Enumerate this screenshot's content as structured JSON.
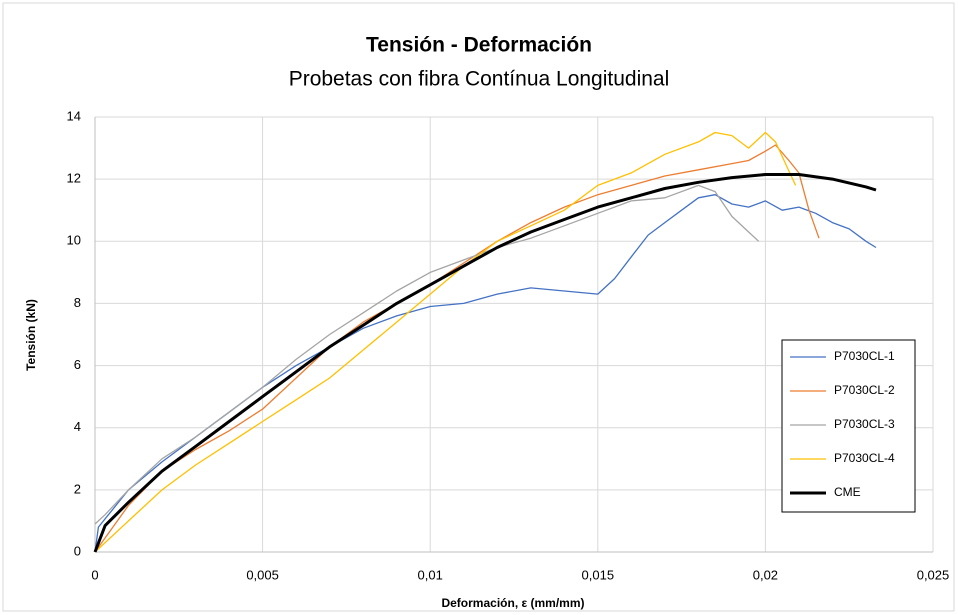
{
  "chart_data": {
    "type": "line",
    "title": "Tensión - Deformación",
    "subtitle": "Probetas con fibra Contínua Longitudinal",
    "x_label": "Deformación, ε (mm/mm)",
    "y_label": "Tensión (kN)",
    "xlim": [
      0,
      0.025
    ],
    "xticks": [
      0,
      {
        "value": 0.005,
        "label": "0,005"
      },
      {
        "value": 0.01,
        "label": "0,01"
      },
      {
        "value": 0.015,
        "label": "0,015"
      },
      {
        "value": 0.02,
        "label": "0,02"
      },
      {
        "value": 0.025,
        "label": "0,025"
      }
    ],
    "ylim": [
      0,
      14
    ],
    "yticks": [
      0,
      2,
      4,
      6,
      8,
      10,
      12,
      14
    ],
    "grid": true,
    "legend": "right",
    "series": [
      {
        "name": "P7030CL-1",
        "color": "#4472c4",
        "width": 1.3,
        "x": [
          0,
          0.0001,
          0.001,
          0.002,
          0.003,
          0.004,
          0.005,
          0.006,
          0.007,
          0.008,
          0.009,
          0.01,
          0.011,
          0.012,
          0.013,
          0.014,
          0.015,
          0.0155,
          0.016,
          0.0165,
          0.017,
          0.0175,
          0.018,
          0.0185,
          0.019,
          0.0195,
          0.02,
          0.0205,
          0.021,
          0.0215,
          0.022,
          0.0225,
          0.023,
          0.0233
        ],
        "values": [
          0,
          0.8,
          2,
          2.9,
          3.7,
          4.5,
          5.3,
          6.0,
          6.6,
          7.2,
          7.6,
          7.9,
          8.0,
          8.3,
          8.5,
          8.4,
          8.3,
          8.8,
          9.5,
          10.2,
          10.6,
          11.0,
          11.4,
          11.5,
          11.2,
          11.1,
          11.3,
          11.0,
          11.1,
          10.9,
          10.6,
          10.4,
          10.0,
          9.8
        ]
      },
      {
        "name": "P7030CL-2",
        "color": "#ed7d31",
        "width": 1.3,
        "x": [
          0,
          0.001,
          0.002,
          0.003,
          0.004,
          0.005,
          0.006,
          0.007,
          0.008,
          0.009,
          0.01,
          0.011,
          0.012,
          0.013,
          0.014,
          0.015,
          0.016,
          0.017,
          0.018,
          0.019,
          0.0195,
          0.02,
          0.0203,
          0.0207,
          0.021,
          0.0213,
          0.0216
        ],
        "values": [
          0,
          1.5,
          2.6,
          3.3,
          3.9,
          4.6,
          5.6,
          6.6,
          7.4,
          8.0,
          8.6,
          9.3,
          10.0,
          10.6,
          11.1,
          11.5,
          11.8,
          12.1,
          12.3,
          12.5,
          12.6,
          12.9,
          13.1,
          12.6,
          12.2,
          11.0,
          10.1
        ]
      },
      {
        "name": "P7030CL-3",
        "color": "#a5a5a5",
        "width": 1.3,
        "x": [
          0,
          0.0003,
          0.001,
          0.002,
          0.003,
          0.004,
          0.005,
          0.006,
          0.007,
          0.008,
          0.009,
          0.01,
          0.011,
          0.012,
          0.013,
          0.014,
          0.015,
          0.016,
          0.017,
          0.018,
          0.0185,
          0.019,
          0.0195,
          0.0198
        ],
        "values": [
          0.9,
          1.2,
          2.0,
          3.0,
          3.7,
          4.5,
          5.3,
          6.2,
          7.0,
          7.7,
          8.4,
          9.0,
          9.4,
          9.8,
          10.1,
          10.5,
          10.9,
          11.3,
          11.4,
          11.8,
          11.6,
          10.8,
          10.3,
          10.0
        ]
      },
      {
        "name": "P7030CL-4",
        "color": "#ffc000",
        "width": 1.3,
        "x": [
          0,
          0.001,
          0.002,
          0.003,
          0.004,
          0.005,
          0.006,
          0.007,
          0.008,
          0.009,
          0.01,
          0.011,
          0.012,
          0.013,
          0.014,
          0.015,
          0.016,
          0.017,
          0.018,
          0.0185,
          0.019,
          0.0195,
          0.02,
          0.0203,
          0.0206,
          0.0209
        ],
        "values": [
          0,
          1.0,
          2.0,
          2.8,
          3.5,
          4.2,
          4.9,
          5.6,
          6.5,
          7.4,
          8.3,
          9.2,
          10.0,
          10.5,
          11.0,
          11.8,
          12.2,
          12.8,
          13.2,
          13.5,
          13.4,
          13.0,
          13.5,
          13.2,
          12.5,
          11.8
        ]
      },
      {
        "name": "CME",
        "color": "#000000",
        "width": 3,
        "x": [
          0,
          0.0003,
          0.001,
          0.002,
          0.003,
          0.004,
          0.005,
          0.006,
          0.007,
          0.008,
          0.009,
          0.01,
          0.011,
          0.012,
          0.013,
          0.014,
          0.015,
          0.016,
          0.017,
          0.018,
          0.019,
          0.02,
          0.021,
          0.022,
          0.023,
          0.0233
        ],
        "values": [
          0,
          0.85,
          1.6,
          2.6,
          3.4,
          4.2,
          5.0,
          5.8,
          6.6,
          7.3,
          8.0,
          8.6,
          9.2,
          9.8,
          10.3,
          10.7,
          11.1,
          11.4,
          11.7,
          11.9,
          12.05,
          12.15,
          12.15,
          12.0,
          11.75,
          11.65
        ]
      }
    ]
  }
}
